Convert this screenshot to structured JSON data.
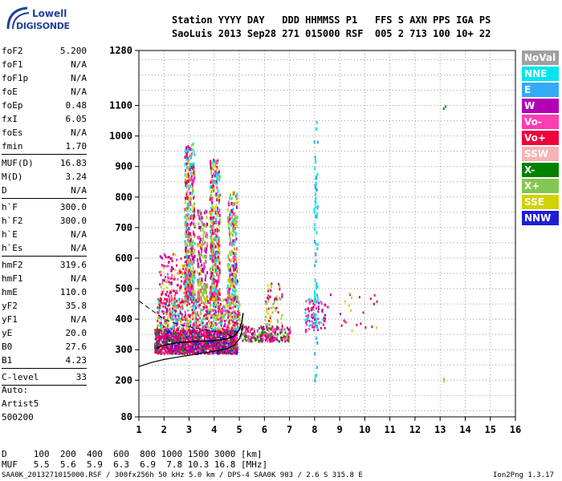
{
  "logo": {
    "line1": "Lowell",
    "line2": "DIGISONDE"
  },
  "header": {
    "line1": "Station YYYY DAY   DDD HHMMSS P1   FFS S AXN PPS IGA PS",
    "line2": "SaoLuis 2013 Sep28 271 015000 RSF  005 2 713 100 10+ 22"
  },
  "params": [
    {
      "key": "foF2",
      "value": "5.200"
    },
    {
      "key": "foF1",
      "value": "N/A"
    },
    {
      "key": "foF1p",
      "value": "N/A"
    },
    {
      "key": "foE",
      "value": "N/A"
    },
    {
      "key": "foEp",
      "value": "0.48"
    },
    {
      "key": "fxI",
      "value": "6.05"
    },
    {
      "key": "foEs",
      "value": "N/A"
    },
    {
      "key": "fmin",
      "value": "1.70"
    },
    {
      "key": "MUF(D)",
      "value": "16.83",
      "sep": true
    },
    {
      "key": "M(D)",
      "value": "3.24"
    },
    {
      "key": "D",
      "value": "N/A"
    },
    {
      "key": "h`F",
      "value": "300.0",
      "sep": true
    },
    {
      "key": "h`F2",
      "value": "300.0"
    },
    {
      "key": "h`E",
      "value": "N/A"
    },
    {
      "key": "h`Es",
      "value": "N/A"
    },
    {
      "key": "hmF2",
      "value": "319.6",
      "sep": true
    },
    {
      "key": "hmF1",
      "value": "N/A"
    },
    {
      "key": "hmE",
      "value": "110.0"
    },
    {
      "key": "yF2",
      "value": "35.8"
    },
    {
      "key": "yF1",
      "value": "N/A"
    },
    {
      "key": "yE",
      "value": "20.0"
    },
    {
      "key": "B0",
      "value": "27.6"
    },
    {
      "key": "B1",
      "value": "4.23"
    },
    {
      "key": "C-level",
      "value": "33",
      "sep": true
    }
  ],
  "auto": {
    "l1": "Auto:",
    "l2": "Artist5",
    "l3": "500200"
  },
  "legend": [
    {
      "label": "NoVal",
      "color": "#a0a0a0"
    },
    {
      "label": "NNE",
      "color": "#00e5ee"
    },
    {
      "label": "E",
      "color": "#33aaf5"
    },
    {
      "label": "W",
      "color": "#b400b4"
    },
    {
      "label": "Vo-",
      "color": "#ff3cb4"
    },
    {
      "label": "Vo+",
      "color": "#f0003c"
    },
    {
      "label": "SSW",
      "color": "#f5b4b4"
    },
    {
      "label": "X-",
      "color": "#008200"
    },
    {
      "label": "X+",
      "color": "#82c850"
    },
    {
      "label": "SSE",
      "color": "#d2d200"
    },
    {
      "label": "NNW",
      "color": "#1e1ed2"
    }
  ],
  "footer": {
    "line1": "D     100  200  400  600  800 1000 1500 3000 [km]",
    "line2": "MUF   5.5  5.6  5.9  6.3  6.9  7.8 10.3 16.8 [MHz]",
    "line3": "SAA0K_2013271015000.RSF / 300fx256h 50 kHz 5.0 km / DPS-4 SAA0K 903 / 2.6 S 315.8 E",
    "version": "Ion2Png 1.3.17"
  },
  "chart_data": {
    "type": "scatter",
    "title": "",
    "xlabel": "",
    "ylabel": "",
    "xlim": [
      1,
      16
    ],
    "ylim": [
      80,
      1280
    ],
    "xticks": [
      1,
      2,
      3,
      4,
      5,
      6,
      7,
      8,
      9,
      10,
      11,
      12,
      13,
      14,
      15,
      16
    ],
    "yticks": [
      80,
      200,
      300,
      400,
      500,
      600,
      700,
      800,
      900,
      1000,
      1100,
      1280
    ],
    "grid": true,
    "legend_placement": "right",
    "profile_curve": [
      [
        1.0,
        245
      ],
      [
        1.5,
        258
      ],
      [
        2.0,
        268
      ],
      [
        2.5,
        275
      ],
      [
        3.0,
        282
      ],
      [
        3.5,
        288
      ],
      [
        4.0,
        295
      ],
      [
        4.5,
        303
      ],
      [
        4.8,
        315
      ],
      [
        5.0,
        335
      ],
      [
        5.1,
        360
      ],
      [
        5.15,
        385
      ]
    ],
    "extraordinary_curve": [
      [
        1.0,
        460
      ],
      [
        1.5,
        430
      ],
      [
        2.0,
        400
      ],
      [
        2.5,
        385
      ],
      [
        3.0,
        375
      ],
      [
        3.5,
        368
      ],
      [
        4.0,
        360
      ],
      [
        4.5,
        352
      ],
      [
        4.8,
        340
      ]
    ],
    "o_trace": [
      [
        1.7,
        305
      ],
      [
        2.0,
        315
      ],
      [
        2.5,
        322
      ],
      [
        3.0,
        326
      ],
      [
        3.5,
        328
      ],
      [
        4.0,
        330
      ],
      [
        4.5,
        335
      ],
      [
        4.8,
        345
      ],
      [
        5.0,
        365
      ],
      [
        5.1,
        390
      ],
      [
        5.15,
        420
      ]
    ],
    "clusters": [
      {
        "name": "main-layer",
        "x": [
          1.6,
          4.9
        ],
        "y": [
          290,
          370
        ],
        "n": 1400,
        "colors": [
          "Vo+",
          "Vo-",
          "W",
          "Vo+",
          "W",
          "NNW",
          "X-"
        ]
      },
      {
        "name": "upper-layer",
        "x": [
          1.7,
          5.0
        ],
        "y": [
          370,
          470
        ],
        "n": 700,
        "colors": [
          "W",
          "Vo-",
          "SSE",
          "X+",
          "Vo+",
          "NNE"
        ]
      },
      {
        "name": "scatter-2to3",
        "x": [
          1.8,
          3.0
        ],
        "y": [
          460,
          620
        ],
        "n": 160,
        "colors": [
          "W",
          "Vo-",
          "Vo+",
          "SSE"
        ]
      },
      {
        "name": "tower-3",
        "x": [
          2.8,
          3.2
        ],
        "y": [
          470,
          980
        ],
        "n": 420,
        "colors": [
          "W",
          "Vo-",
          "Vo+",
          "SSE",
          "X+",
          "NNE"
        ]
      },
      {
        "name": "tower-4",
        "x": [
          3.8,
          4.2
        ],
        "y": [
          470,
          930
        ],
        "n": 380,
        "colors": [
          "W",
          "Vo-",
          "SSE",
          "X+",
          "NNE",
          "Vo+"
        ]
      },
      {
        "name": "tower-4.7",
        "x": [
          4.5,
          4.9
        ],
        "y": [
          470,
          820
        ],
        "n": 260,
        "colors": [
          "SSE",
          "W",
          "Vo-",
          "X+",
          "NNE"
        ]
      },
      {
        "name": "tower-3.5",
        "x": [
          3.3,
          3.7
        ],
        "y": [
          470,
          760
        ],
        "n": 170,
        "colors": [
          "W",
          "Vo-",
          "SSE",
          "X+"
        ]
      },
      {
        "name": "cluster-5to7",
        "x": [
          5.0,
          7.0
        ],
        "y": [
          330,
          380
        ],
        "n": 240,
        "colors": [
          "Vo+",
          "Vo-",
          "W",
          "X-",
          "X+"
        ]
      },
      {
        "name": "cluster-6.2",
        "x": [
          6.0,
          6.7
        ],
        "y": [
          380,
          520
        ],
        "n": 60,
        "colors": [
          "Vo+",
          "W",
          "X+",
          "SSE"
        ]
      },
      {
        "name": "cluster-7.8",
        "x": [
          7.6,
          8.4
        ],
        "y": [
          360,
          470
        ],
        "n": 90,
        "colors": [
          "W",
          "Vo+",
          "Vo-",
          "NNE"
        ]
      },
      {
        "name": "stripe-8",
        "x": [
          7.95,
          8.1
        ],
        "y": [
          180,
          1050
        ],
        "n": 70,
        "colors": [
          "NNE",
          "E"
        ]
      },
      {
        "name": "sparse-8to10",
        "x": [
          8.3,
          10.5
        ],
        "y": [
          360,
          490
        ],
        "n": 25,
        "colors": [
          "Vo+",
          "W",
          "SSE"
        ]
      },
      {
        "name": "lone-13",
        "x": [
          13.1,
          13.2
        ],
        "y": [
          1090,
          1100
        ],
        "n": 2,
        "colors": [
          "X-"
        ]
      },
      {
        "name": "lone-13b",
        "x": [
          13.1,
          13.2
        ],
        "y": [
          200,
          210
        ],
        "n": 2,
        "colors": [
          "X+"
        ]
      }
    ]
  }
}
